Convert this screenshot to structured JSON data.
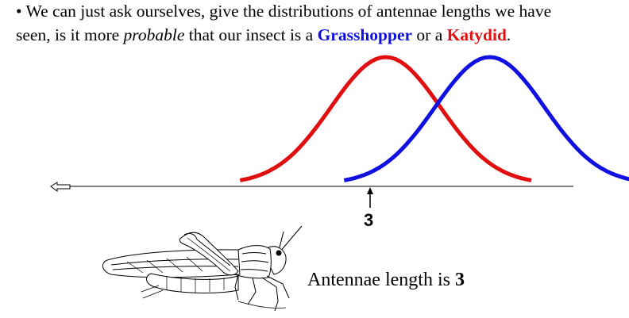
{
  "text": {
    "bullet": "•",
    "line1": "We can just ask ourselves, give the distributions of antennae lengths we have",
    "line2_pre": "seen, is it more ",
    "line2_italic": "probable",
    "line2_mid": " that our insect is a ",
    "class_grasshopper": "Grasshopper",
    "line2_or": " or a ",
    "class_katydid": "Katydid",
    "line2_end": "."
  },
  "marker": {
    "value": "3"
  },
  "caption": {
    "prefix": "Antennae length is ",
    "value": "3"
  },
  "colors": {
    "grasshopper": "#1010e0",
    "katydid": "#e01010",
    "axis": "#000000"
  },
  "chart_data": {
    "type": "line",
    "series": [
      {
        "name": "Katydid",
        "color": "#e01010",
        "mean": 3.3,
        "sd": 1.05,
        "range": [
          0.5,
          6.1
        ]
      },
      {
        "name": "Grasshopper",
        "color": "#1010e0",
        "mean": 5.3,
        "sd": 1.05,
        "range": [
          2.5,
          8.1
        ]
      }
    ],
    "marker_x": 3,
    "icons": [
      "left-arrow-icon",
      "up-arrow-icon",
      "grasshopper-illustration"
    ]
  }
}
